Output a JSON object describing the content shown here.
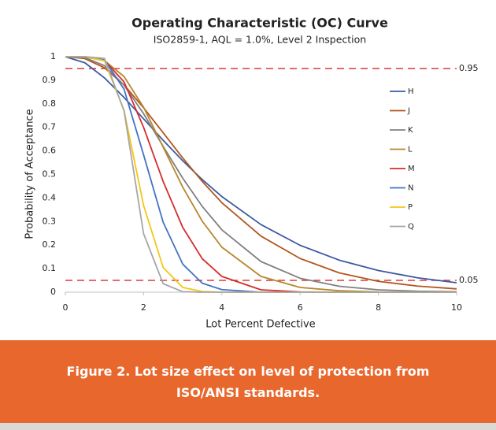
{
  "chart_data": {
    "type": "line",
    "title": "Operating Characteristic (OC) Curve",
    "subtitle": "ISO2859-1, AQL = 1.0%, Level 2 Inspection",
    "x_label": "Lot Percent Defective",
    "y_label": "Probability of Acceptance",
    "x": [
      0,
      0.5,
      1,
      1.5,
      2,
      2.5,
      3,
      3.5,
      4,
      5,
      6,
      7,
      8,
      9,
      10
    ],
    "series": [
      {
        "name": "H",
        "color": "#3c5aa0",
        "values": [
          1,
          0.974,
          0.91,
          0.827,
          0.736,
          0.645,
          0.558,
          0.478,
          0.406,
          0.287,
          0.199,
          0.136,
          0.092,
          0.061,
          0.04
        ]
      },
      {
        "name": "J",
        "color": "#b3561f",
        "values": [
          1,
          0.992,
          0.953,
          0.88,
          0.783,
          0.677,
          0.57,
          0.47,
          0.38,
          0.238,
          0.143,
          0.082,
          0.046,
          0.026,
          0.014
        ]
      },
      {
        "name": "K",
        "color": "#808080",
        "values": [
          1,
          0.996,
          0.962,
          0.879,
          0.758,
          0.619,
          0.484,
          0.364,
          0.265,
          0.13,
          0.059,
          0.025,
          0.01,
          0.004,
          0.002
        ]
      },
      {
        "name": "L",
        "color": "#b8862b",
        "values": [
          1,
          0.999,
          0.983,
          0.916,
          0.785,
          0.616,
          0.446,
          0.301,
          0.191,
          0.067,
          0.02,
          0.006,
          0.001,
          0,
          0
        ]
      },
      {
        "name": "M",
        "color": "#d62d2d",
        "values": [
          1,
          1,
          0.984,
          0.893,
          0.7,
          0.47,
          0.275,
          0.142,
          0.067,
          0.01,
          0.001,
          0,
          0,
          0,
          0
        ]
      },
      {
        "name": "N",
        "color": "#4472c4",
        "values": [
          1,
          1,
          0.986,
          0.862,
          0.583,
          0.297,
          0.119,
          0.038,
          0.011,
          0,
          0,
          0,
          0,
          0,
          0
        ]
      },
      {
        "name": "P",
        "color": "#f5c518",
        "values": [
          1,
          1,
          0.983,
          0.772,
          0.368,
          0.105,
          0.02,
          0.003,
          0,
          0,
          0,
          0,
          0,
          0,
          0
        ]
      },
      {
        "name": "Q",
        "color": "#a6a6a6",
        "values": [
          1,
          1,
          0.993,
          0.77,
          0.248,
          0.036,
          0.002,
          0,
          0,
          0,
          0,
          0,
          0,
          0,
          0
        ]
      }
    ],
    "xlim": [
      0,
      10
    ],
    "xticks": [
      0,
      2,
      4,
      6,
      8,
      10
    ],
    "ylim": [
      0,
      1
    ],
    "yticks": [
      0,
      0.1,
      0.2,
      0.3,
      0.4,
      0.5,
      0.6,
      0.7,
      0.8,
      0.9,
      1
    ],
    "hlines": [
      0.95,
      0.05
    ],
    "hline_color": "#d93a3a",
    "grid": false,
    "legend": "right"
  },
  "caption": "Figure 2. Lot size effect on level of protection from ISO/ANSI standards."
}
